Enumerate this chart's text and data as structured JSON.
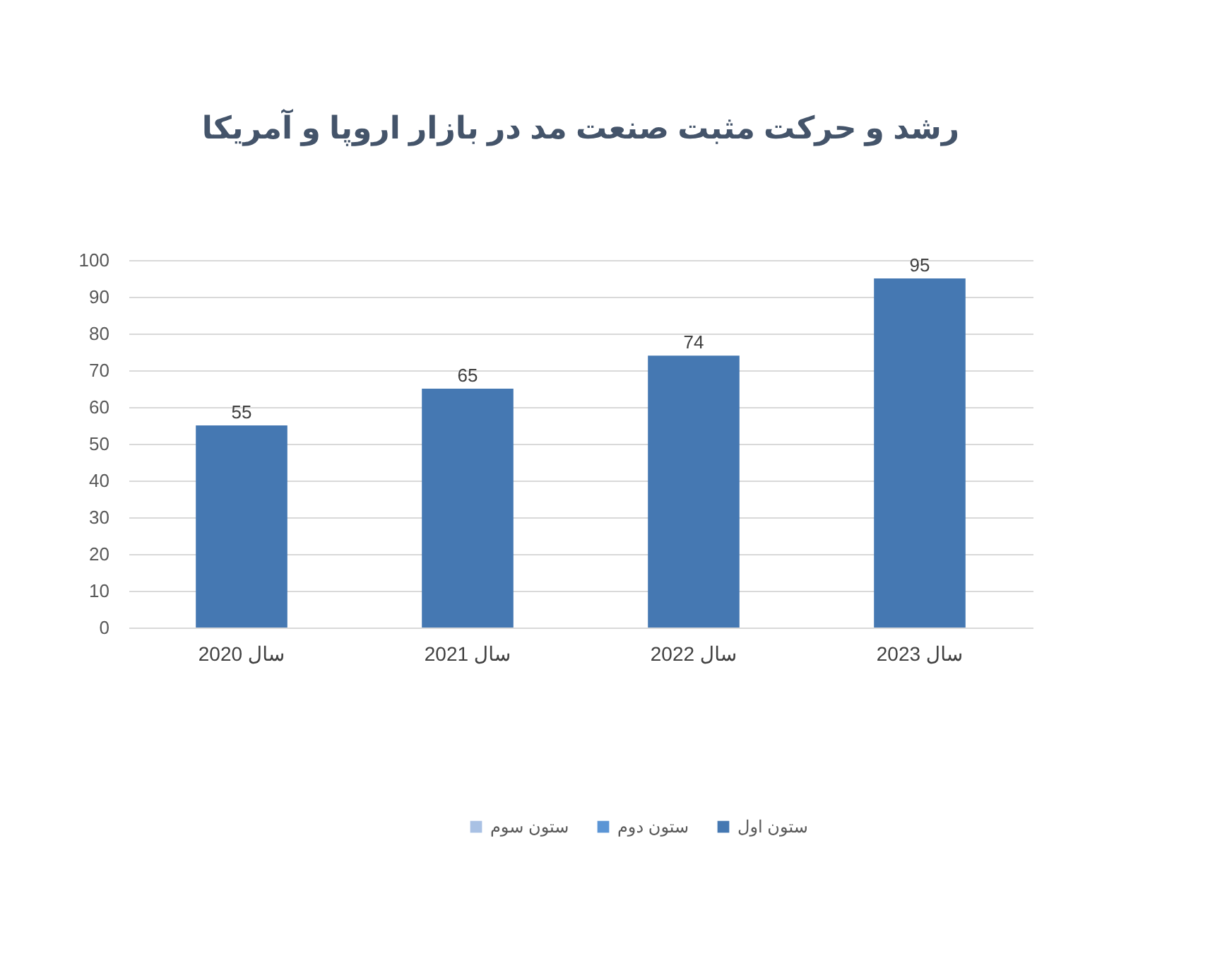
{
  "chart_data": {
    "type": "bar",
    "title": "رشد و حرکت مثبت صنعت مد در بازار اروپا و آمریکا",
    "categories": [
      "سال 2020",
      "سال 2021",
      "سال 2022",
      "سال 2023"
    ],
    "series": [
      {
        "name": "ستون اول",
        "color": "#4578b2",
        "values": [
          55,
          65,
          74,
          95
        ]
      },
      {
        "name": "ستون دوم",
        "color": "#5b95d5",
        "values": [
          null,
          null,
          null,
          null
        ]
      },
      {
        "name": "ستون سوم",
        "color": "#a9c1e4",
        "values": [
          null,
          null,
          null,
          null
        ]
      }
    ],
    "ylim": [
      0,
      100
    ],
    "yticks": [
      0,
      10,
      20,
      30,
      40,
      50,
      60,
      70,
      80,
      90,
      100
    ],
    "grid": "y",
    "legend": "bottom",
    "data_labels": true
  }
}
